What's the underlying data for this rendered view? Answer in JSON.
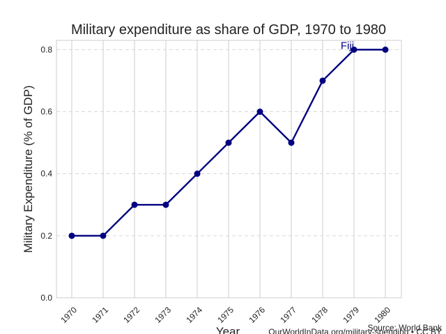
{
  "chart_data": {
    "type": "line",
    "title": "Military expenditure as share of GDP, 1970 to 1980",
    "xlabel": "Year",
    "ylabel": "Military Expenditure (% of GDP)",
    "x": [
      "1970",
      "1971",
      "1972",
      "1973",
      "1974",
      "1975",
      "1976",
      "1977",
      "1978",
      "1979",
      "1980"
    ],
    "series": [
      {
        "name": "Fiji",
        "color": "#000080",
        "values": [
          0.2,
          0.2,
          0.3,
          0.3,
          0.4,
          0.5,
          0.6,
          0.5,
          0.7,
          0.8,
          0.8
        ]
      }
    ],
    "ylim": [
      0,
      0.83
    ],
    "yticks": [
      "0.0",
      "0.2",
      "0.4",
      "0.6",
      "0.8"
    ],
    "grid": true,
    "source": "Source: World Bank",
    "url": "OurWorldInData.org/military-spending • CC BY"
  }
}
